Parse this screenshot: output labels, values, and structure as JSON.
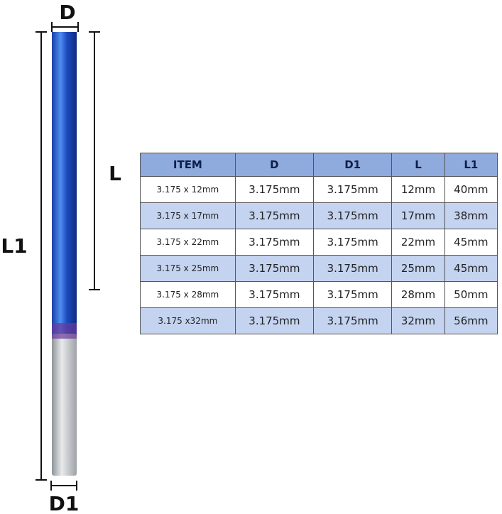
{
  "labels": {
    "d": "D",
    "l": "L",
    "l1": "L1",
    "d1": "D1"
  },
  "table": {
    "header": [
      "ITEM",
      "D",
      "D1",
      "L",
      "L1"
    ],
    "rows": [
      [
        "3.175 x 12mm",
        "3.175mm",
        "3.175mm",
        "12mm",
        "40mm"
      ],
      [
        "3.175 x 17mm",
        "3.175mm",
        "3.175mm",
        "17mm",
        "38mm"
      ],
      [
        "3.175 x 22mm",
        "3.175mm",
        "3.175mm",
        "22mm",
        "45mm"
      ],
      [
        "3.175 x 25mm",
        "3.175mm",
        "3.175mm",
        "25mm",
        "45mm"
      ],
      [
        "3.175 x 28mm",
        "3.175mm",
        "3.175mm",
        "28mm",
        "50mm"
      ],
      [
        "3.175 x32mm",
        "3.175mm",
        "3.175mm",
        "32mm",
        "56mm"
      ]
    ]
  }
}
